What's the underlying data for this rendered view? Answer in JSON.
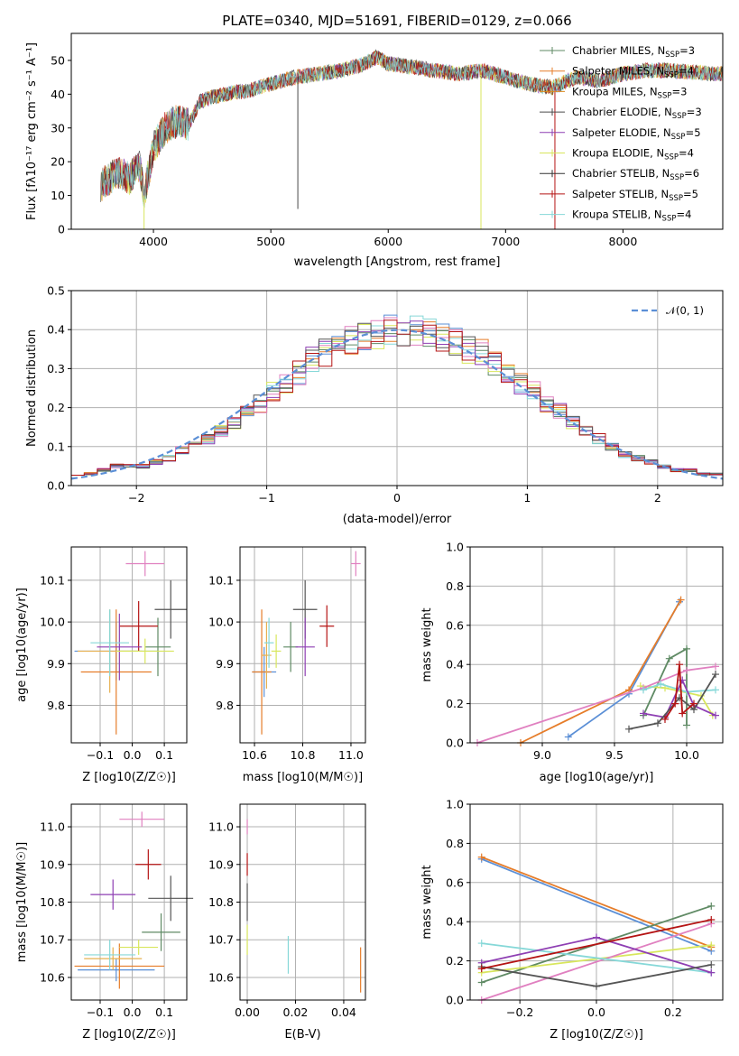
{
  "chart_data": [
    {
      "id": "spectrum",
      "type": "line",
      "title": "PLATE=0340, MJD=51691, FIBERID=0129, z=0.066",
      "xlabel": "wavelength [Angstrom, rest frame]",
      "ylabel": "Flux [fλ10⁻¹⁷ erg cm⁻² s⁻¹ A⁻¹]",
      "xlim": [
        3300,
        8850
      ],
      "ylim": [
        0,
        58
      ],
      "xticks": [
        "4000",
        "5000",
        "6000",
        "7000",
        "8000"
      ],
      "yticks": [
        "0",
        "10",
        "20",
        "30",
        "40",
        "50"
      ],
      "legend_position": "upper-right",
      "envelope": {
        "x": [
          3550,
          3700,
          3800,
          3880,
          3920,
          4000,
          4100,
          4200,
          4300,
          4400,
          4600,
          4800,
          5000,
          5200,
          5400,
          5600,
          5800,
          5900,
          6000,
          6200,
          6400,
          6600,
          6800,
          7000,
          7200,
          7400,
          7600,
          7800,
          8000,
          8200,
          8400,
          8800
        ],
        "y": [
          13,
          17,
          15,
          19,
          10,
          24,
          30,
          32,
          31,
          38,
          40,
          41,
          43,
          45,
          46,
          47,
          49,
          51,
          49,
          48,
          47,
          46,
          47,
          45,
          43,
          42,
          45,
          44,
          46,
          47,
          47,
          46
        ]
      },
      "series": [
        {
          "name": "Chabrier MILES, N_SSP=3",
          "color": "#5f8a64"
        },
        {
          "name": "Salpeter MILES, N_SSP=4",
          "color": "#e67d2a"
        },
        {
          "name": "Kroupa MILES, N_SSP=3",
          "color": "#dd8a1e"
        },
        {
          "name": "Chabrier ELODIE, N_SSP=3",
          "color": "#4a4a4a"
        },
        {
          "name": "Salpeter ELODIE, N_SSP=5",
          "color": "#8e3fb3"
        },
        {
          "name": "Kroupa ELODIE, N_SSP=4",
          "color": "#d8e65c"
        },
        {
          "name": "Chabrier STELIB, N_SSP=6",
          "color": "#333333"
        },
        {
          "name": "Salpeter STELIB, N_SSP=5",
          "color": "#b51414"
        },
        {
          "name": "Kroupa STELIB, N_SSP=4",
          "color": "#86d8d8"
        }
      ],
      "legend_labels": [
        {
          "pre": "Chabrier MILES, N",
          "sub": "SSP",
          "post": "=3"
        },
        {
          "pre": "Salpeter MILES, N",
          "sub": "SSP",
          "post": "=4"
        },
        {
          "pre": "Kroupa MILES, N",
          "sub": "SSP",
          "post": "=3"
        },
        {
          "pre": "Chabrier ELODIE, N",
          "sub": "SSP",
          "post": "=3"
        },
        {
          "pre": "Salpeter ELODIE, N",
          "sub": "SSP",
          "post": "=5"
        },
        {
          "pre": "Kroupa ELODIE, N",
          "sub": "SSP",
          "post": "=4"
        },
        {
          "pre": "Chabrier STELIB, N",
          "sub": "SSP",
          "post": "=6"
        },
        {
          "pre": "Salpeter STELIB, N",
          "sub": "SSP",
          "post": "=5"
        },
        {
          "pre": "Kroupa STELIB, N",
          "sub": "SSP",
          "post": "=4"
        }
      ],
      "spikes": [
        {
          "x": 3920,
          "y": 0,
          "color": "#d8e65c"
        },
        {
          "x": 5230,
          "y": 6,
          "color": "#4a4a4a"
        },
        {
          "x": 6790,
          "y": 0,
          "color": "#d8e65c"
        },
        {
          "x": 7420,
          "y": 0,
          "color": "#b51414"
        }
      ]
    },
    {
      "id": "residuals",
      "type": "histogram",
      "xlabel": "(data-model)/error",
      "ylabel": "Normed distribution",
      "xlim": [
        -2.5,
        2.5
      ],
      "ylim": [
        0,
        0.5
      ],
      "xticks": [
        "−2",
        "−1",
        "0",
        "1",
        "2"
      ],
      "yticks": [
        "0.0",
        "0.1",
        "0.2",
        "0.3",
        "0.4",
        "0.5"
      ],
      "reference_curve": {
        "name": "𝒩(0, 1)",
        "style": "dashed",
        "color": "#5b8fd6"
      },
      "bin_edges": [
        -2.5,
        -2.4,
        -2.3,
        -2.2,
        -2.1,
        -2.0,
        -1.9,
        -1.8,
        -1.7,
        -1.6,
        -1.5,
        -1.4,
        -1.3,
        -1.2,
        -1.1,
        -1.0,
        -0.9,
        -0.8,
        -0.7,
        -0.6,
        -0.5,
        -0.4,
        -0.3,
        -0.2,
        -0.1,
        0.0,
        0.1,
        0.2,
        0.3,
        0.4,
        0.5,
        0.6,
        0.7,
        0.8,
        0.9,
        1.0,
        1.1,
        1.2,
        1.3,
        1.4,
        1.5,
        1.6,
        1.7,
        1.8,
        1.9,
        2.0,
        2.1,
        2.2,
        2.3,
        2.4,
        2.5
      ],
      "bin_heights": [
        0.03,
        0.03,
        0.04,
        0.05,
        0.05,
        0.05,
        0.06,
        0.07,
        0.09,
        0.11,
        0.12,
        0.14,
        0.16,
        0.19,
        0.21,
        0.24,
        0.26,
        0.29,
        0.32,
        0.34,
        0.35,
        0.37,
        0.38,
        0.39,
        0.4,
        0.4,
        0.4,
        0.39,
        0.38,
        0.37,
        0.35,
        0.34,
        0.31,
        0.29,
        0.26,
        0.24,
        0.21,
        0.19,
        0.16,
        0.14,
        0.12,
        0.1,
        0.08,
        0.07,
        0.06,
        0.05,
        0.04,
        0.04,
        0.03,
        0.03
      ]
    },
    {
      "id": "age-vs-Z",
      "type": "scatter",
      "xlabel": "Z [log10(Z/Z☉)]",
      "ylabel": "age [log10(age/yr)]",
      "xlim": [
        -0.19,
        0.17
      ],
      "ylim": [
        9.71,
        10.18
      ],
      "xticks": [
        "−0.1",
        "0.0",
        "0.1"
      ],
      "yticks": [
        "9.8",
        "9.9",
        "10.0",
        "10.1"
      ],
      "points": [
        {
          "x": -0.05,
          "y": 9.93,
          "xerr": 0.13,
          "yerr": 0.07,
          "color": "#5b8fd6"
        },
        {
          "x": 0.08,
          "y": 9.94,
          "xerr": 0.04,
          "yerr": 0.07,
          "color": "#5f8a64"
        },
        {
          "x": -0.05,
          "y": 9.88,
          "xerr": 0.11,
          "yerr": 0.15,
          "color": "#e67d2a"
        },
        {
          "x": -0.07,
          "y": 9.93,
          "xerr": 0.1,
          "yerr": 0.1,
          "color": "#e6b050"
        },
        {
          "x": 0.04,
          "y": 10.14,
          "xerr": 0.06,
          "yerr": 0.03,
          "color": "#e080c0"
        },
        {
          "x": 0.02,
          "y": 9.99,
          "xerr": 0.06,
          "yerr": 0.06,
          "color": "#b51414"
        },
        {
          "x": 0.12,
          "y": 10.03,
          "xerr": 0.05,
          "yerr": 0.07,
          "color": "#555555"
        },
        {
          "x": -0.04,
          "y": 9.94,
          "xerr": 0.07,
          "yerr": 0.08,
          "color": "#8e3fb3"
        },
        {
          "x": -0.07,
          "y": 9.95,
          "xerr": 0.06,
          "yerr": 0.08,
          "color": "#86d8d8"
        },
        {
          "x": 0.04,
          "y": 9.93,
          "xerr": 0.09,
          "yerr": 0.03,
          "color": "#d8e65c"
        }
      ]
    },
    {
      "id": "age-vs-mass",
      "type": "scatter",
      "xlabel": "mass [log10(M/M☉)]",
      "ylabel": "",
      "xlim": [
        10.54,
        11.06
      ],
      "ylim": [
        9.71,
        10.18
      ],
      "xticks": [
        "10.6",
        "10.8",
        "11.0"
      ],
      "yticks": [
        "9.8",
        "9.9",
        "10.0",
        "10.1"
      ],
      "points": [
        {
          "x": 10.64,
          "y": 9.88,
          "xerr": 0.05,
          "yerr": 0.06,
          "color": "#5b8fd6"
        },
        {
          "x": 10.75,
          "y": 9.94,
          "xerr": 0.03,
          "yerr": 0.06,
          "color": "#5f8a64"
        },
        {
          "x": 10.63,
          "y": 9.88,
          "xerr": 0.04,
          "yerr": 0.15,
          "color": "#e67d2a"
        },
        {
          "x": 10.65,
          "y": 9.92,
          "xerr": 0.02,
          "yerr": 0.08,
          "color": "#e6b050"
        },
        {
          "x": 11.02,
          "y": 10.14,
          "xerr": 0.02,
          "yerr": 0.03,
          "color": "#e080c0"
        },
        {
          "x": 10.9,
          "y": 9.99,
          "xerr": 0.03,
          "yerr": 0.05,
          "color": "#b51414"
        },
        {
          "x": 10.81,
          "y": 10.03,
          "xerr": 0.05,
          "yerr": 0.07,
          "color": "#555555"
        },
        {
          "x": 10.81,
          "y": 9.94,
          "xerr": 0.04,
          "yerr": 0.07,
          "color": "#8e3fb3"
        },
        {
          "x": 10.66,
          "y": 9.95,
          "xerr": 0.02,
          "yerr": 0.06,
          "color": "#86d8d8"
        },
        {
          "x": 10.69,
          "y": 9.93,
          "xerr": 0.02,
          "yerr": 0.04,
          "color": "#d8e65c"
        }
      ]
    },
    {
      "id": "massweight-vs-age",
      "type": "line",
      "xlabel": "age [log10(age/yr)]",
      "ylabel": "mass weight",
      "xlim": [
        8.5,
        10.25
      ],
      "ylim": [
        0,
        1.0
      ],
      "xticks": [
        "9.0",
        "9.5",
        "10.0"
      ],
      "yticks": [
        "0.0",
        "0.2",
        "0.4",
        "0.6",
        "0.8",
        "1.0"
      ],
      "series": [
        {
          "color": "#5b8fd6",
          "x": [
            9.18,
            9.6,
            9.95
          ],
          "y": [
            0.03,
            0.25,
            0.72
          ]
        },
        {
          "color": "#e67d2a",
          "x": [
            8.85,
            9.6,
            9.96
          ],
          "y": [
            0.0,
            0.27,
            0.73
          ]
        },
        {
          "color": "#5f8a64",
          "x": [
            9.7,
            9.88,
            10.0,
            10.0
          ],
          "y": [
            0.14,
            0.43,
            0.48,
            0.09
          ]
        },
        {
          "color": "#d8e65c",
          "x": [
            9.68,
            9.85,
            10.1,
            10.18
          ],
          "y": [
            0.29,
            0.28,
            0.24,
            0.14
          ]
        },
        {
          "color": "#e080c0",
          "x": [
            8.55,
            9.7,
            10.0,
            10.2
          ],
          "y": [
            0.0,
            0.28,
            0.37,
            0.39
          ]
        },
        {
          "color": "#86d8d8",
          "x": [
            9.7,
            9.82,
            10.0,
            10.2
          ],
          "y": [
            0.27,
            0.3,
            0.26,
            0.27
          ]
        },
        {
          "color": "#8e3fb3",
          "x": [
            9.7,
            9.85,
            9.97,
            10.05,
            10.2
          ],
          "y": [
            0.15,
            0.13,
            0.32,
            0.19,
            0.14
          ]
        },
        {
          "color": "#555555",
          "x": [
            9.6,
            9.8,
            9.95,
            10.05,
            10.2
          ],
          "y": [
            0.07,
            0.1,
            0.23,
            0.17,
            0.35
          ]
        },
        {
          "color": "#b51414",
          "x": [
            9.85,
            9.92,
            9.95,
            9.97,
            10.05
          ],
          "y": [
            0.12,
            0.2,
            0.4,
            0.15,
            0.2
          ]
        }
      ]
    },
    {
      "id": "mass-vs-Z",
      "type": "scatter",
      "xlabel": "Z [log10(Z/Z☉)]",
      "ylabel": "mass [log10(M/M☉)]",
      "xlim": [
        -0.19,
        0.17
      ],
      "ylim": [
        10.54,
        11.06
      ],
      "xticks": [
        "−0.1",
        "0.0",
        "0.1"
      ],
      "yticks": [
        "10.6",
        "10.7",
        "10.8",
        "10.9",
        "11.0"
      ],
      "points": [
        {
          "x": -0.05,
          "y": 10.62,
          "xerr": 0.12,
          "yerr": 0.03,
          "color": "#5b8fd6"
        },
        {
          "x": 0.09,
          "y": 10.72,
          "xerr": 0.06,
          "yerr": 0.05,
          "color": "#5f8a64"
        },
        {
          "x": -0.04,
          "y": 10.63,
          "xerr": 0.14,
          "yerr": 0.06,
          "color": "#e67d2a"
        },
        {
          "x": -0.06,
          "y": 10.65,
          "xerr": 0.09,
          "yerr": 0.03,
          "color": "#e6b050"
        },
        {
          "x": 0.03,
          "y": 11.02,
          "xerr": 0.07,
          "yerr": 0.02,
          "color": "#e080c0"
        },
        {
          "x": 0.05,
          "y": 10.9,
          "xerr": 0.04,
          "yerr": 0.04,
          "color": "#b51414"
        },
        {
          "x": 0.12,
          "y": 10.81,
          "xerr": 0.07,
          "yerr": 0.06,
          "color": "#555555"
        },
        {
          "x": -0.06,
          "y": 10.82,
          "xerr": 0.07,
          "yerr": 0.04,
          "color": "#8e3fb3"
        },
        {
          "x": -0.07,
          "y": 10.66,
          "xerr": 0.08,
          "yerr": 0.04,
          "color": "#86d8d8"
        },
        {
          "x": 0.02,
          "y": 10.68,
          "xerr": 0.06,
          "yerr": 0.02,
          "color": "#d8e65c"
        }
      ]
    },
    {
      "id": "mass-vs-EBV",
      "type": "scatter",
      "xlabel": "E(B-V)",
      "ylabel": "",
      "xlim": [
        -0.003,
        0.049
      ],
      "ylim": [
        10.54,
        11.06
      ],
      "xticks": [
        "0.00",
        "0.02",
        "0.04"
      ],
      "yticks": [
        "10.6",
        "10.7",
        "10.8",
        "10.9",
        "11.0"
      ],
      "points": [
        {
          "x": 0.0,
          "y": 11.0,
          "yerr": 0.02,
          "color": "#e080c0"
        },
        {
          "x": 0.0,
          "y": 10.9,
          "yerr": 0.03,
          "color": "#b51414"
        },
        {
          "x": 0.0,
          "y": 10.8,
          "yerr": 0.05,
          "color": "#555555"
        },
        {
          "x": 0.0,
          "y": 10.7,
          "yerr": 0.04,
          "color": "#d8e65c"
        },
        {
          "x": 0.017,
          "y": 10.66,
          "yerr": 0.05,
          "color": "#86d8d8"
        },
        {
          "x": 0.047,
          "y": 10.62,
          "yerr": 0.06,
          "color": "#e67d2a"
        }
      ]
    },
    {
      "id": "massweight-vs-Z",
      "type": "line",
      "xlabel": "Z [log10(Z/Z☉)]",
      "ylabel": "mass weight",
      "xlim": [
        -0.33,
        0.33
      ],
      "ylim": [
        0,
        1.0
      ],
      "xticks": [
        "−0.2",
        "0.0",
        "0.2"
      ],
      "yticks": [
        "0.0",
        "0.2",
        "0.4",
        "0.6",
        "0.8",
        "1.0"
      ],
      "series": [
        {
          "color": "#5b8fd6",
          "x": [
            -0.3,
            0.3
          ],
          "y": [
            0.72,
            0.25
          ]
        },
        {
          "color": "#e67d2a",
          "x": [
            -0.3,
            0.3
          ],
          "y": [
            0.73,
            0.27
          ]
        },
        {
          "color": "#5f8a64",
          "x": [
            -0.3,
            0.3
          ],
          "y": [
            0.09,
            0.48
          ]
        },
        {
          "color": "#d8e65c",
          "x": [
            -0.3,
            0.3
          ],
          "y": [
            0.14,
            0.28
          ]
        },
        {
          "color": "#e080c0",
          "x": [
            -0.3,
            0.3
          ],
          "y": [
            0.0,
            0.39
          ]
        },
        {
          "color": "#86d8d8",
          "x": [
            -0.3,
            0.3
          ],
          "y": [
            0.29,
            0.14
          ]
        },
        {
          "color": "#8e3fb3",
          "x": [
            -0.3,
            0.0,
            0.3
          ],
          "y": [
            0.19,
            0.32,
            0.14
          ]
        },
        {
          "color": "#555555",
          "x": [
            -0.3,
            0.0,
            0.3
          ],
          "y": [
            0.17,
            0.07,
            0.18
          ]
        },
        {
          "color": "#b51414",
          "x": [
            -0.3,
            0.3
          ],
          "y": [
            0.16,
            0.41
          ]
        }
      ]
    }
  ]
}
